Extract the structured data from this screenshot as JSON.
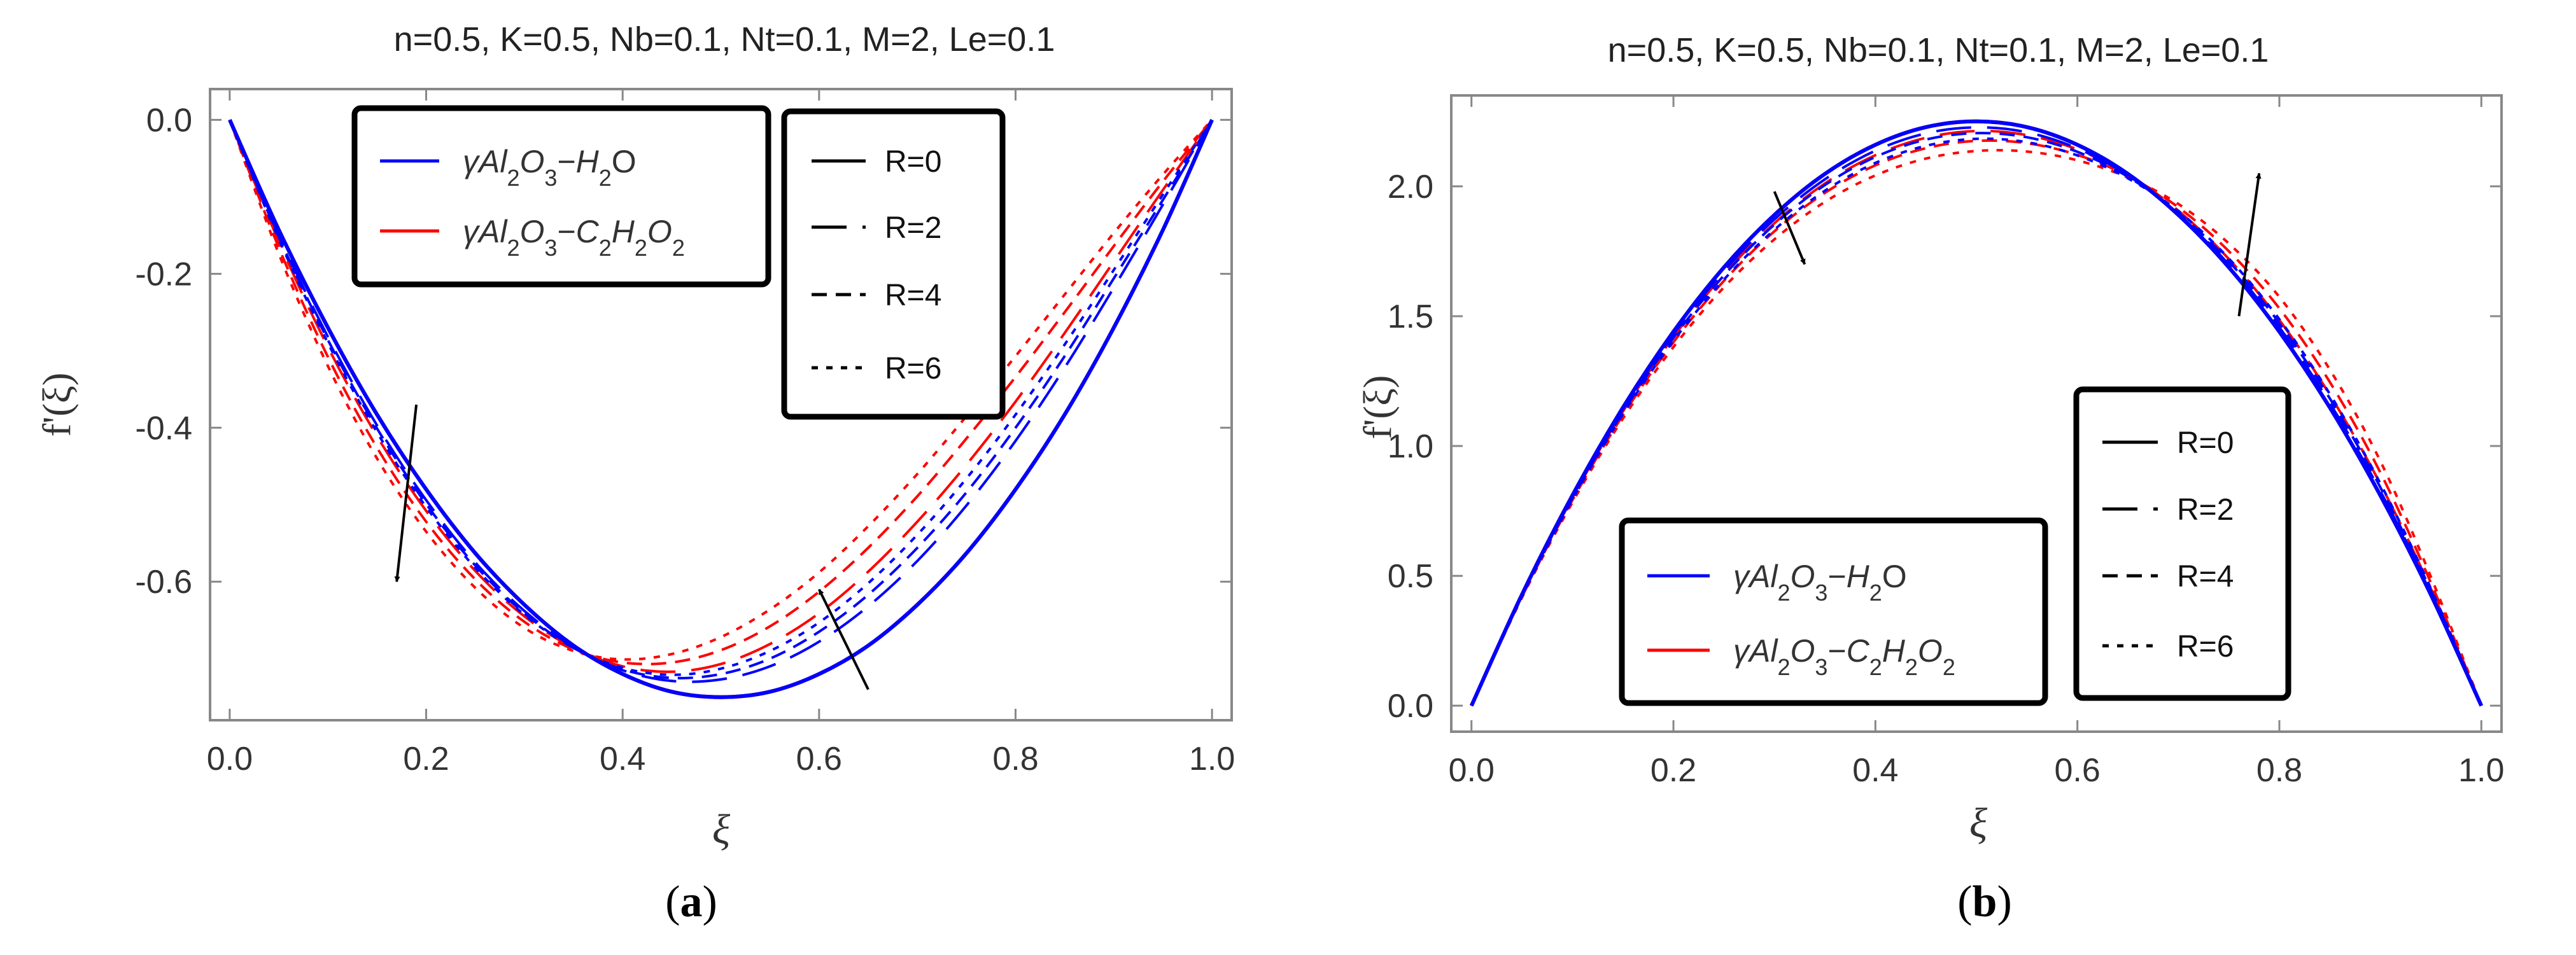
{
  "panels": [
    {
      "id": "a",
      "caption_prefix": "(",
      "caption_letter": "a",
      "caption_suffix": ")"
    },
    {
      "id": "b",
      "caption_prefix": "(",
      "caption_letter": "b",
      "caption_suffix": ")"
    }
  ],
  "legend_fluids": {
    "water": {
      "prefix": "γAl",
      "sub1": "2",
      "mid": "O",
      "sub2": "3",
      "dash": "−",
      "tail": "H",
      "sub3": "2",
      "end": "O",
      "color": "#0000ff"
    },
    "glycol": {
      "prefix": "γAl",
      "sub1": "2",
      "mid": "O",
      "sub2": "3",
      "dash": "−",
      "t1": "C",
      "s1": "2",
      "t2": "H",
      "s2": "2",
      "t3": "O",
      "s3": "2",
      "color": "#ff0000"
    }
  },
  "legend_R": [
    "R=0",
    "R=2",
    "R=4",
    "R=6"
  ],
  "chart_data": [
    {
      "type": "line",
      "title": "n=0.5, K=0.5, Nb=0.1, Nt=0.1, M=2, Le=0.1",
      "xlabel": "ξ",
      "ylabel": "f'(ξ)",
      "xlim": [
        -0.02,
        1.02
      ],
      "ylim": [
        -0.78,
        0.04
      ],
      "xticks": [
        "0.0",
        "0.2",
        "0.4",
        "0.6",
        "0.8",
        "1.0"
      ],
      "xtick_values": [
        0,
        0.2,
        0.4,
        0.6,
        0.8,
        1.0
      ],
      "yticks": [
        "0.0",
        "-0.2",
        "-0.4",
        "-0.6"
      ],
      "ytick_values": [
        0,
        -0.2,
        -0.4,
        -0.6
      ],
      "x": [
        0,
        0.05,
        0.1,
        0.15,
        0.2,
        0.25,
        0.3,
        0.35,
        0.4,
        0.45,
        0.5,
        0.55,
        0.6,
        0.65,
        0.7,
        0.75,
        0.8,
        0.85,
        0.9,
        0.95,
        1.0
      ],
      "series": [
        {
          "name": "γAl2O3−H2O, R=0",
          "fluid": "water",
          "R": 0,
          "values": [
            0,
            -0.143,
            -0.27,
            -0.383,
            -0.48,
            -0.563,
            -0.63,
            -0.683,
            -0.72,
            -0.743,
            -0.75,
            -0.743,
            -0.72,
            -0.683,
            -0.63,
            -0.563,
            -0.48,
            -0.383,
            -0.27,
            -0.143,
            0
          ]
        },
        {
          "name": "γAl2O3−H2O, R=2",
          "fluid": "water",
          "R": 2,
          "values": [
            0,
            -0.15,
            -0.282,
            -0.397,
            -0.494,
            -0.575,
            -0.638,
            -0.685,
            -0.715,
            -0.729,
            -0.727,
            -0.71,
            -0.678,
            -0.632,
            -0.573,
            -0.501,
            -0.417,
            -0.322,
            -0.218,
            -0.11,
            0
          ]
        },
        {
          "name": "γAl2O3−H2O, R=4",
          "fluid": "water",
          "R": 4,
          "values": [
            0,
            -0.152,
            -0.286,
            -0.401,
            -0.499,
            -0.579,
            -0.641,
            -0.686,
            -0.714,
            -0.725,
            -0.72,
            -0.7,
            -0.665,
            -0.617,
            -0.556,
            -0.484,
            -0.4,
            -0.307,
            -0.206,
            -0.104,
            0
          ]
        },
        {
          "name": "γAl2O3−H2O, R=6",
          "fluid": "water",
          "R": 6,
          "values": [
            0,
            -0.155,
            -0.29,
            -0.406,
            -0.503,
            -0.582,
            -0.643,
            -0.686,
            -0.712,
            -0.721,
            -0.713,
            -0.69,
            -0.653,
            -0.602,
            -0.539,
            -0.466,
            -0.383,
            -0.292,
            -0.195,
            -0.097,
            0
          ]
        },
        {
          "name": "γAl2O3−C2H2O2, R=0",
          "fluid": "glycol",
          "R": 0,
          "values": [
            0,
            -0.143,
            -0.27,
            -0.383,
            -0.48,
            -0.563,
            -0.63,
            -0.683,
            -0.72,
            -0.743,
            -0.75,
            -0.743,
            -0.72,
            -0.683,
            -0.63,
            -0.563,
            -0.48,
            -0.383,
            -0.27,
            -0.143,
            0
          ]
        },
        {
          "name": "γAl2O3−C2H2O2, R=2",
          "fluid": "glycol",
          "R": 2,
          "values": [
            0,
            -0.158,
            -0.295,
            -0.411,
            -0.508,
            -0.586,
            -0.645,
            -0.686,
            -0.71,
            -0.717,
            -0.707,
            -0.681,
            -0.641,
            -0.587,
            -0.522,
            -0.448,
            -0.366,
            -0.277,
            -0.184,
            -0.091,
            0
          ]
        },
        {
          "name": "γAl2O3−C2H2O2, R=4",
          "fluid": "glycol",
          "R": 4,
          "values": [
            0,
            -0.166,
            -0.308,
            -0.426,
            -0.522,
            -0.597,
            -0.652,
            -0.688,
            -0.705,
            -0.705,
            -0.689,
            -0.658,
            -0.613,
            -0.556,
            -0.489,
            -0.414,
            -0.334,
            -0.25,
            -0.164,
            -0.08,
            0
          ]
        },
        {
          "name": "γAl2O3−C2H2O2, R=6",
          "fluid": "glycol",
          "R": 6,
          "values": [
            0,
            -0.174,
            -0.32,
            -0.44,
            -0.535,
            -0.608,
            -0.66,
            -0.69,
            -0.701,
            -0.694,
            -0.672,
            -0.636,
            -0.588,
            -0.528,
            -0.46,
            -0.385,
            -0.307,
            -0.227,
            -0.147,
            -0.071,
            0
          ]
        }
      ],
      "annotations": [
        {
          "kind": "arrow",
          "from": [
            0.19,
            -0.37
          ],
          "to": [
            0.17,
            -0.6
          ],
          "meaning": "R increasing"
        },
        {
          "kind": "arrow",
          "from": [
            0.65,
            -0.74
          ],
          "to": [
            0.6,
            -0.61
          ],
          "meaning": "R increasing"
        }
      ]
    },
    {
      "type": "line",
      "title": "n=0.5, K=0.5, Nb=0.1, Nt=0.1, M=2, Le=0.1",
      "xlabel": "ξ",
      "ylabel": "f'(ξ)",
      "xlim": [
        -0.02,
        1.02
      ],
      "ylim": [
        -0.1,
        2.35
      ],
      "xticks": [
        "0.0",
        "0.2",
        "0.4",
        "0.6",
        "0.8",
        "1.0"
      ],
      "xtick_values": [
        0,
        0.2,
        0.4,
        0.6,
        0.8,
        1.0
      ],
      "yticks": [
        "0.0",
        "0.5",
        "1.0",
        "1.5",
        "2.0"
      ],
      "ytick_values": [
        0,
        0.5,
        1.0,
        1.5,
        2.0
      ],
      "x": [
        0,
        0.05,
        0.1,
        0.15,
        0.2,
        0.25,
        0.3,
        0.35,
        0.4,
        0.45,
        0.5,
        0.55,
        0.6,
        0.65,
        0.7,
        0.75,
        0.8,
        0.85,
        0.9,
        0.95,
        1.0
      ],
      "series": [
        {
          "name": "γAl2O3−H2O, R=0",
          "fluid": "water",
          "R": 0,
          "values": [
            0,
            0.428,
            0.81,
            1.148,
            1.44,
            1.688,
            1.89,
            2.048,
            2.16,
            2.228,
            2.25,
            2.228,
            2.16,
            2.048,
            1.89,
            1.688,
            1.44,
            1.148,
            0.81,
            0.428,
            0
          ]
        },
        {
          "name": "γAl2O3−H2O, R=2",
          "fluid": "water",
          "R": 2,
          "values": [
            0,
            0.426,
            0.806,
            1.141,
            1.43,
            1.674,
            1.873,
            2.027,
            2.137,
            2.204,
            2.227,
            2.208,
            2.146,
            2.042,
            1.893,
            1.699,
            1.457,
            1.165,
            0.826,
            0.436,
            0
          ]
        },
        {
          "name": "γAl2O3−H2O, R=4",
          "fluid": "water",
          "R": 4,
          "values": [
            0,
            0.423,
            0.8,
            1.131,
            1.417,
            1.657,
            1.853,
            2.005,
            2.113,
            2.18,
            2.205,
            2.189,
            2.133,
            2.037,
            1.899,
            1.711,
            1.473,
            1.183,
            0.841,
            0.444,
            0
          ]
        },
        {
          "name": "γAl2O3−H2O, R=6",
          "fluid": "water",
          "R": 6,
          "values": [
            0,
            0.421,
            0.794,
            1.123,
            1.405,
            1.641,
            1.833,
            1.983,
            2.09,
            2.156,
            2.183,
            2.17,
            2.119,
            2.031,
            1.904,
            1.722,
            1.488,
            1.2,
            0.856,
            0.452,
            0
          ]
        },
        {
          "name": "γAl2O3−C2H2O2, R=0",
          "fluid": "glycol",
          "R": 0,
          "values": [
            0,
            0.428,
            0.81,
            1.148,
            1.44,
            1.688,
            1.89,
            2.048,
            2.16,
            2.228,
            2.25,
            2.228,
            2.16,
            2.048,
            1.89,
            1.688,
            1.44,
            1.148,
            0.81,
            0.428,
            0
          ]
        },
        {
          "name": "γAl2O3−C2H2O2, R=2",
          "fluid": "glycol",
          "R": 2,
          "values": [
            0,
            0.424,
            0.801,
            1.133,
            1.42,
            1.661,
            1.858,
            2.011,
            2.12,
            2.187,
            2.213,
            2.197,
            2.142,
            2.046,
            1.906,
            1.72,
            1.485,
            1.197,
            0.854,
            0.451,
            0
          ]
        },
        {
          "name": "γAl2O3−C2H2O2, R=4",
          "fluid": "glycol",
          "R": 4,
          "values": [
            0,
            0.42,
            0.792,
            1.119,
            1.4,
            1.636,
            1.827,
            1.975,
            2.081,
            2.147,
            2.175,
            2.166,
            2.121,
            2.04,
            1.919,
            1.75,
            1.53,
            1.246,
            0.898,
            0.474,
            0
          ]
        },
        {
          "name": "γAl2O3−C2H2O2, R=6",
          "fluid": "glycol",
          "R": 6,
          "values": [
            0,
            0.416,
            0.783,
            1.106,
            1.381,
            1.611,
            1.796,
            1.94,
            2.042,
            2.107,
            2.136,
            2.134,
            2.1,
            2.034,
            1.932,
            1.78,
            1.574,
            1.294,
            0.942,
            0.497,
            0
          ]
        }
      ],
      "annotations": [
        {
          "kind": "arrow",
          "from": [
            0.3,
            1.98
          ],
          "to": [
            0.33,
            1.7
          ],
          "meaning": "R increasing"
        },
        {
          "kind": "arrow",
          "from": [
            0.76,
            1.5
          ],
          "to": [
            0.78,
            2.05
          ],
          "meaning": "R increasing"
        }
      ]
    }
  ]
}
